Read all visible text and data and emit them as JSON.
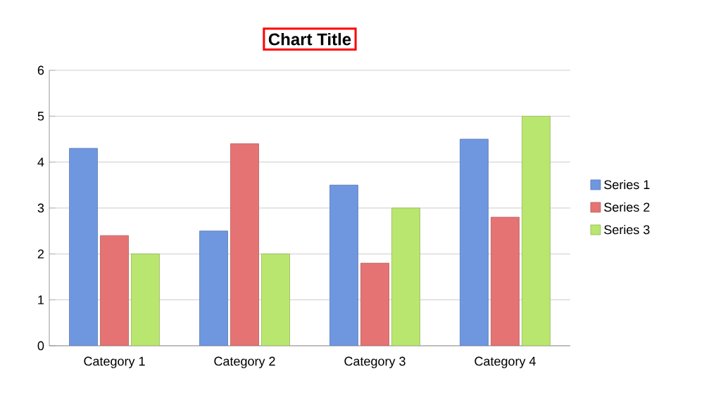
{
  "chart_data": {
    "type": "bar",
    "title": "Chart Title",
    "categories": [
      "Category 1",
      "Category 2",
      "Category 3",
      "Category 4"
    ],
    "series": [
      {
        "name": "Series 1",
        "color": "#6f97e0",
        "values": [
          4.3,
          2.5,
          3.5,
          4.5
        ]
      },
      {
        "name": "Series 2",
        "color": "#e57373",
        "values": [
          2.4,
          4.4,
          1.8,
          2.8
        ]
      },
      {
        "name": "Series 3",
        "color": "#b9e66e",
        "values": [
          2,
          2,
          3,
          5
        ]
      }
    ],
    "ylim": [
      0,
      6
    ],
    "yticks": [
      0,
      1,
      2,
      3,
      4,
      5,
      6
    ],
    "grid": "y",
    "legend": "right"
  }
}
